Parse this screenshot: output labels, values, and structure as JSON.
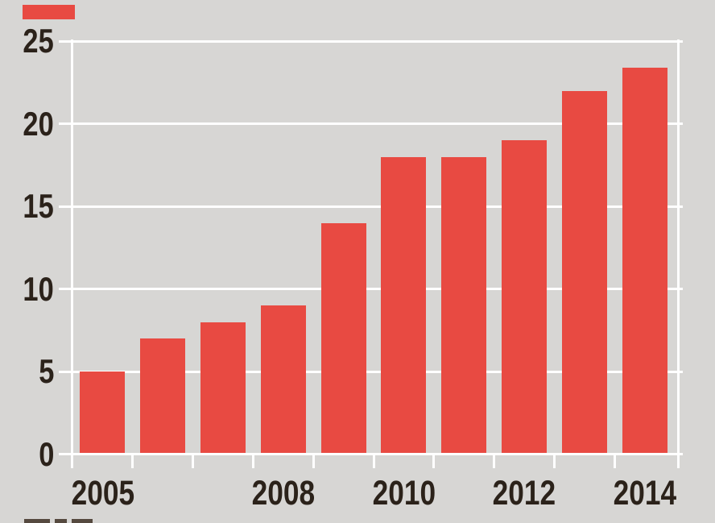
{
  "chart_data": {
    "type": "bar",
    "categories": [
      "2005",
      "2006",
      "2007",
      "2008",
      "2009",
      "2010",
      "2011",
      "2012",
      "2013",
      "2014"
    ],
    "values": [
      5,
      7,
      8,
      9,
      14,
      18,
      18,
      19,
      22,
      23.4
    ],
    "title": "",
    "xlabel": "",
    "ylabel": "",
    "ylim": [
      0,
      25
    ],
    "ytick_values": [
      25,
      20,
      15,
      10,
      5,
      0
    ],
    "ytick_labels": [
      "25",
      "20",
      "15",
      "10",
      "5",
      "0"
    ],
    "xticks": [
      {
        "label": "2005",
        "slot": 0
      },
      {
        "label": "2008",
        "slot": 3
      },
      {
        "label": "2010",
        "slot": 5
      },
      {
        "label": "2012",
        "slot": 7
      },
      {
        "label": "2014",
        "slot": 9
      }
    ],
    "grid": "horizontal-white-gridlines",
    "legend": "none",
    "bar_color": "#e84a42",
    "background_color": "#d7d6d4",
    "label_color": "#2b221a",
    "gridline_color": "#ffffff"
  },
  "fragments": {
    "top_left_red_block": "partially-cropped red element",
    "bottom_caption_sliver": "top edge of caption text cut off by bottom crop"
  }
}
